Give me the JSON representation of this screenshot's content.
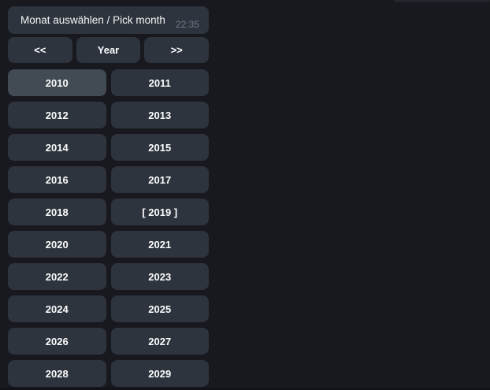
{
  "message": {
    "title": "Monat auswählen / Pick month",
    "timestamp": "22:35"
  },
  "keyboard": {
    "nav": [
      {
        "name": "nav-prev-button",
        "label": "<<"
      },
      {
        "name": "nav-year-button",
        "label": "Year"
      },
      {
        "name": "nav-next-button",
        "label": ">>"
      }
    ],
    "years": [
      {
        "name": "year-button-2010",
        "label": "2010",
        "state": "hovered"
      },
      {
        "name": "year-button-2011",
        "label": "2011",
        "state": "normal"
      },
      {
        "name": "year-button-2012",
        "label": "2012",
        "state": "normal"
      },
      {
        "name": "year-button-2013",
        "label": "2013",
        "state": "normal"
      },
      {
        "name": "year-button-2014",
        "label": "2014",
        "state": "normal"
      },
      {
        "name": "year-button-2015",
        "label": "2015",
        "state": "normal"
      },
      {
        "name": "year-button-2016",
        "label": "2016",
        "state": "normal"
      },
      {
        "name": "year-button-2017",
        "label": "2017",
        "state": "normal"
      },
      {
        "name": "year-button-2018",
        "label": "2018",
        "state": "normal"
      },
      {
        "name": "year-button-2019",
        "label": "[ 2019 ]",
        "state": "selected"
      },
      {
        "name": "year-button-2020",
        "label": "2020",
        "state": "normal"
      },
      {
        "name": "year-button-2021",
        "label": "2021",
        "state": "normal"
      },
      {
        "name": "year-button-2022",
        "label": "2022",
        "state": "normal"
      },
      {
        "name": "year-button-2023",
        "label": "2023",
        "state": "normal"
      },
      {
        "name": "year-button-2024",
        "label": "2024",
        "state": "normal"
      },
      {
        "name": "year-button-2025",
        "label": "2025",
        "state": "normal"
      },
      {
        "name": "year-button-2026",
        "label": "2026",
        "state": "normal"
      },
      {
        "name": "year-button-2027",
        "label": "2027",
        "state": "normal"
      },
      {
        "name": "year-button-2028",
        "label": "2028",
        "state": "normal"
      },
      {
        "name": "year-button-2029",
        "label": "2029",
        "state": "normal"
      }
    ]
  },
  "colors": {
    "background": "#17191f",
    "bubble": "#2e343d",
    "button": "#2e343d",
    "button_hover": "#424a54",
    "text": "#f3f5f7",
    "timestamp": "#6f7a87"
  }
}
